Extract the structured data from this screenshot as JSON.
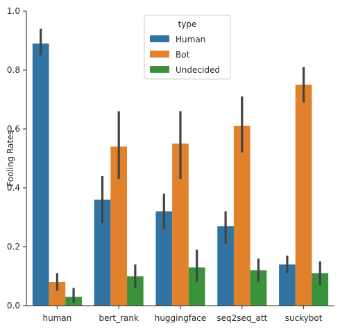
{
  "chart_data": {
    "type": "bar",
    "title": "",
    "xlabel": "",
    "ylabel": "Fooling Rates",
    "ylim": [
      0,
      1.0
    ],
    "yticks": [
      "0.0",
      "0.2",
      "0.4",
      "0.6",
      "0.8",
      "1.0"
    ],
    "categories": [
      "human",
      "bert_rank",
      "huggingface",
      "seq2seq_att",
      "suckybot"
    ],
    "legend": {
      "title": "type",
      "placement": "top-center"
    },
    "grid": false,
    "series": [
      {
        "name": "Human",
        "color": "#3274a1",
        "values": [
          0.89,
          0.36,
          0.32,
          0.27,
          0.14
        ],
        "ci_low": [
          0.85,
          0.28,
          0.26,
          0.21,
          0.11
        ],
        "ci_high": [
          0.94,
          0.44,
          0.38,
          0.32,
          0.17
        ]
      },
      {
        "name": "Bot",
        "color": "#e1812c",
        "values": [
          0.08,
          0.54,
          0.55,
          0.61,
          0.75
        ],
        "ci_low": [
          0.05,
          0.43,
          0.43,
          0.52,
          0.69
        ],
        "ci_high": [
          0.11,
          0.66,
          0.66,
          0.71,
          0.81
        ]
      },
      {
        "name": "Undecided",
        "color": "#3a923a",
        "values": [
          0.03,
          0.1,
          0.13,
          0.12,
          0.11
        ],
        "ci_low": [
          0.01,
          0.06,
          0.08,
          0.08,
          0.07
        ],
        "ci_high": [
          0.06,
          0.14,
          0.19,
          0.16,
          0.15
        ]
      }
    ]
  }
}
